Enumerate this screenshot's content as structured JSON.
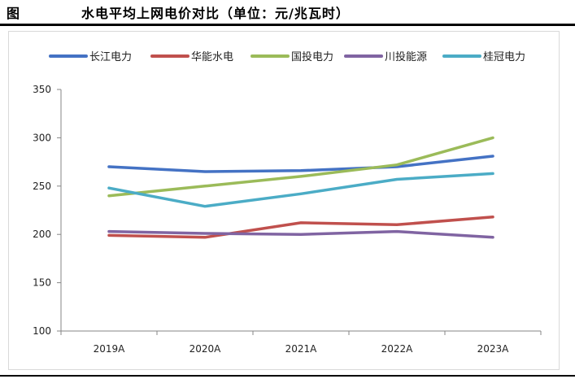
{
  "header": {
    "figure_label": "图",
    "title": "水电平均上网电价对比（单位：元/兆瓦时）"
  },
  "chart_data": {
    "type": "line",
    "title": "",
    "xlabel": "",
    "ylabel": "",
    "categories": [
      "2019A",
      "2020A",
      "2021A",
      "2022A",
      "2023A"
    ],
    "ylim": [
      100,
      350
    ],
    "yticks": [
      100,
      150,
      200,
      250,
      300,
      350
    ],
    "grid": false,
    "legend_position": "top",
    "series": [
      {
        "name": "长江电力",
        "color": "#4472c4",
        "values": [
          270,
          265,
          266,
          270,
          281
        ]
      },
      {
        "name": "华能水电",
        "color": "#c0504d",
        "values": [
          199,
          197,
          212,
          210,
          218
        ]
      },
      {
        "name": "国投电力",
        "color": "#9bbb59",
        "values": [
          240,
          250,
          260,
          272,
          300
        ]
      },
      {
        "name": "川投能源",
        "color": "#8064a2",
        "values": [
          203,
          201,
          200,
          203,
          197
        ]
      },
      {
        "name": "桂冠电力",
        "color": "#4bacc6",
        "values": [
          248,
          229,
          242,
          257,
          263
        ]
      }
    ]
  }
}
